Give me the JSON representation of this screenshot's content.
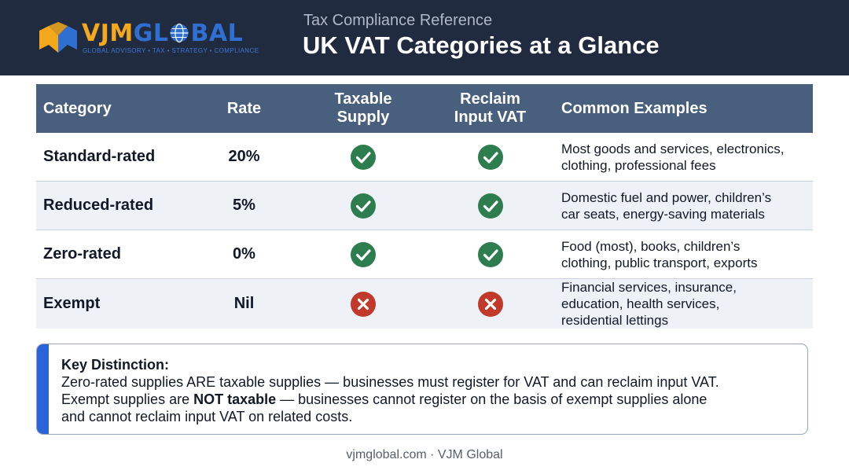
{
  "brand": {
    "name_part1": "VJM",
    "name_part2_pre": "GL",
    "name_part2_post": "BAL",
    "tagline": "GLOBAL ADVISORY • TAX • STRATEGY • COMPLIANCE",
    "colors": {
      "gold": "#f4a81c",
      "blue": "#2f6fd1"
    }
  },
  "header": {
    "subtitle": "Tax Compliance Reference",
    "title": "UK VAT Categories at a Glance"
  },
  "table": {
    "columns": [
      {
        "label": "Category"
      },
      {
        "label": "Rate"
      },
      {
        "label_line1": "Taxable",
        "label_line2": "Supply"
      },
      {
        "label_line1": "Reclaim",
        "label_line2": "Input VAT"
      },
      {
        "label": "Common Examples"
      }
    ],
    "rows": [
      {
        "category": "Standard-rated",
        "rate": "20%",
        "taxable_icon": "check-icon",
        "reclaim_icon": "check-icon",
        "examples_line1": "Most goods and services, electronics,",
        "examples_line2": "clothing, professional fees",
        "examples_line3": ""
      },
      {
        "category": "Reduced-rated",
        "rate": "5%",
        "taxable_icon": "check-icon",
        "reclaim_icon": "check-icon",
        "examples_line1": "Domestic fuel and power, children’s",
        "examples_line2": "car seats, energy-saving materials",
        "examples_line3": ""
      },
      {
        "category": "Zero-rated",
        "rate": "0%",
        "taxable_icon": "check-icon",
        "reclaim_icon": "check-icon",
        "examples_line1": "Food (most), books, children’s",
        "examples_line2": "clothing, public transport, exports",
        "examples_line3": ""
      },
      {
        "category": "Exempt",
        "rate": "Nil",
        "taxable_icon": "cross-icon",
        "reclaim_icon": "cross-icon",
        "examples_line1": "Financial services, insurance,",
        "examples_line2": "education, health services,",
        "examples_line3": "residential lettings"
      }
    ],
    "colors": {
      "header_bg": "#48607e",
      "check": "#2e7d4f",
      "cross": "#c0392b",
      "alt_row": "#eef2f7"
    }
  },
  "note": {
    "title": "Key Distinction:",
    "line1": "Zero-rated supplies ARE taxable supplies — businesses must register for VAT and can reclaim input VAT.",
    "line2_pre": "Exempt supplies are ",
    "line2_bold": "NOT taxable",
    "line2_post": " — businesses cannot register on the basis of exempt supplies alone",
    "line3": "and cannot reclaim input VAT on related costs.",
    "accent_color": "#2b63d9"
  },
  "footer": {
    "text": "vjmglobal.com · VJM Global"
  }
}
